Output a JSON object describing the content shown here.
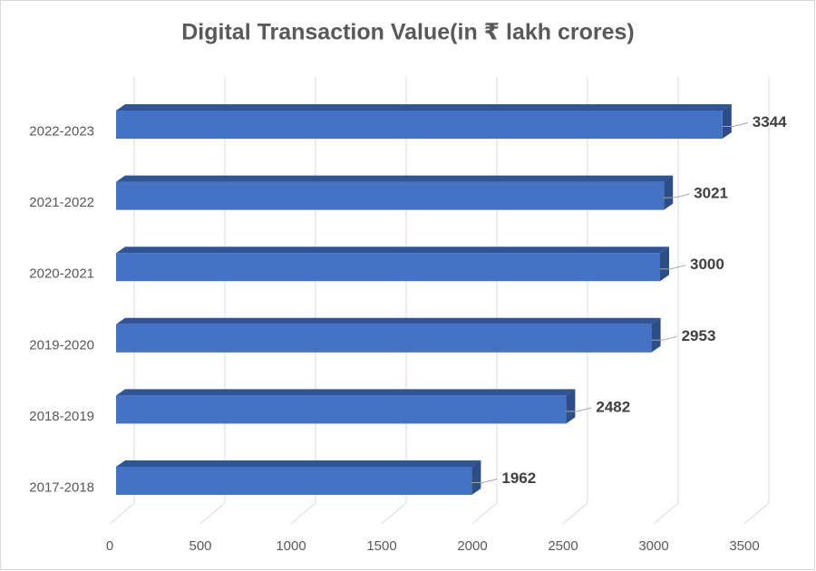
{
  "chart_data": {
    "type": "bar",
    "orientation": "horizontal",
    "title": "Digital Transaction Value(in ₹ lakh crores)",
    "categories": [
      "2017-2018",
      "2018-2019",
      "2019-2020",
      "2020-2021",
      "2021-2022",
      "2022-2023"
    ],
    "values": [
      1962,
      2482,
      2953,
      3000,
      3021,
      3344
    ],
    "color": "#4472c4",
    "xlim": [
      0,
      3500
    ],
    "xticks": [
      0,
      500,
      1000,
      1500,
      2000,
      2500,
      3000,
      3500
    ],
    "grid": true
  }
}
